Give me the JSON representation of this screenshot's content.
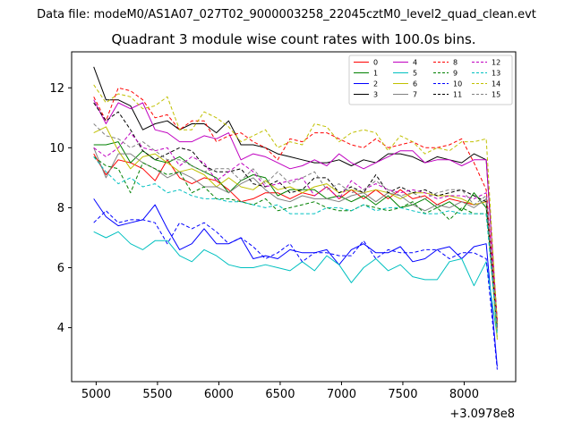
{
  "suptitle": "Data file: modeM0/AS1A07_027T02_9000003258_22045cztM0_level2_quad_clean.evt",
  "chart_data": {
    "type": "line",
    "title": "Quadrant 3 module wise count rates with 100.0s bins.",
    "xlabel": "",
    "ylabel": "",
    "x_offset_label": "+3.0978e8",
    "xlim": [
      4800,
      8420
    ],
    "ylim": [
      2.2,
      13.2
    ],
    "xticks": [
      5000,
      5500,
      6000,
      6500,
      7000,
      7500,
      8000
    ],
    "yticks": [
      4,
      6,
      8,
      10,
      12
    ],
    "legend_position": "top-right",
    "x": [
      4980,
      5080,
      5180,
      5280,
      5380,
      5480,
      5580,
      5680,
      5780,
      5880,
      5980,
      6080,
      6180,
      6280,
      6380,
      6480,
      6580,
      6680,
      6780,
      6880,
      6980,
      7080,
      7180,
      7280,
      7380,
      7480,
      7580,
      7680,
      7780,
      7880,
      7980,
      8080,
      8180,
      8270
    ],
    "series": [
      {
        "name": "0",
        "color": "#ff0000",
        "dash": false,
        "values": [
          9.8,
          9.1,
          9.6,
          9.5,
          9.3,
          8.9,
          9.6,
          9.0,
          8.8,
          9.0,
          8.9,
          8.6,
          8.2,
          8.3,
          8.5,
          8.5,
          8.3,
          8.5,
          8.4,
          8.7,
          8.3,
          8.6,
          8.3,
          8.6,
          8.3,
          8.6,
          8.3,
          8.4,
          8.1,
          8.3,
          8.2,
          8.1,
          8.2,
          4.0
        ]
      },
      {
        "name": "1",
        "color": "#008000",
        "dash": false,
        "values": [
          10.1,
          10.1,
          10.2,
          9.5,
          9.9,
          9.6,
          9.5,
          9.7,
          9.4,
          9.2,
          9.0,
          8.5,
          8.9,
          9.1,
          9.0,
          8.4,
          8.6,
          8.6,
          8.6,
          8.3,
          8.4,
          8.2,
          8.4,
          8.1,
          8.4,
          8.0,
          8.1,
          8.3,
          8.0,
          8.2,
          7.9,
          8.5,
          8.0,
          4.1
        ]
      },
      {
        "name": "2",
        "color": "#0000ff",
        "dash": false,
        "values": [
          8.3,
          7.7,
          7.4,
          7.5,
          7.6,
          8.1,
          7.3,
          6.6,
          6.8,
          7.3,
          6.8,
          6.8,
          7.0,
          6.3,
          6.4,
          6.3,
          6.6,
          6.5,
          6.5,
          6.6,
          6.1,
          6.6,
          6.8,
          6.5,
          6.5,
          6.7,
          6.2,
          6.3,
          6.6,
          6.7,
          6.3,
          6.7,
          6.8,
          2.7
        ]
      },
      {
        "name": "3",
        "color": "#000000",
        "dash": false,
        "values": [
          12.7,
          11.6,
          11.6,
          11.4,
          10.6,
          10.8,
          10.9,
          10.6,
          10.8,
          10.8,
          10.5,
          10.9,
          10.1,
          10.1,
          10.0,
          9.8,
          9.7,
          9.6,
          9.5,
          9.5,
          9.6,
          9.4,
          9.6,
          9.5,
          9.8,
          9.8,
          9.7,
          9.5,
          9.7,
          9.6,
          9.5,
          9.8,
          9.6,
          4.2
        ]
      },
      {
        "name": "4",
        "color": "#c000c0",
        "dash": false,
        "values": [
          11.6,
          10.8,
          11.5,
          11.3,
          11.5,
          10.6,
          10.5,
          10.2,
          10.2,
          10.4,
          10.3,
          10.5,
          9.6,
          9.8,
          9.7,
          9.5,
          9.3,
          9.4,
          9.6,
          9.4,
          9.8,
          9.5,
          9.3,
          9.5,
          9.7,
          9.9,
          9.9,
          9.5,
          9.6,
          9.6,
          9.4,
          9.6,
          9.6,
          4.2
        ]
      },
      {
        "name": "5",
        "color": "#00c0c0",
        "dash": false,
        "values": [
          7.2,
          7.0,
          7.2,
          6.8,
          6.6,
          6.9,
          6.9,
          6.4,
          6.2,
          6.6,
          6.4,
          6.1,
          6.0,
          6.0,
          6.1,
          6.0,
          5.9,
          6.2,
          5.9,
          6.4,
          6.1,
          5.5,
          6.0,
          6.3,
          5.9,
          6.1,
          5.7,
          5.6,
          5.6,
          6.2,
          6.3,
          5.4,
          6.2,
          3.7
        ]
      },
      {
        "name": "6",
        "color": "#c0c000",
        "dash": false,
        "values": [
          10.5,
          10.7,
          9.9,
          9.3,
          9.7,
          9.8,
          9.5,
          9.2,
          9.3,
          9.1,
          8.7,
          9.0,
          8.7,
          8.6,
          8.9,
          8.6,
          8.7,
          8.5,
          8.7,
          8.8,
          8.5,
          8.6,
          8.5,
          8.6,
          8.5,
          8.3,
          8.5,
          8.5,
          8.4,
          8.4,
          8.3,
          8.1,
          8.2,
          3.6
        ]
      },
      {
        "name": "7",
        "color": "#808080",
        "dash": false,
        "values": [
          10.0,
          9.0,
          9.8,
          9.8,
          9.5,
          9.3,
          9.0,
          9.2,
          9.0,
          8.7,
          8.7,
          8.5,
          8.8,
          9.0,
          8.6,
          8.3,
          8.2,
          8.4,
          8.3,
          8.3,
          8.2,
          8.4,
          8.5,
          8.2,
          8.5,
          8.4,
          8.1,
          7.9,
          8.1,
          8.0,
          8.2,
          8.0,
          8.3,
          3.9
        ]
      },
      {
        "name": "8",
        "color": "#ff0000",
        "dash": true,
        "values": [
          11.7,
          10.9,
          12.0,
          11.9,
          11.6,
          11.0,
          11.1,
          10.6,
          10.9,
          10.9,
          10.2,
          10.4,
          10.5,
          10.2,
          10.0,
          9.6,
          10.3,
          10.2,
          10.5,
          10.5,
          10.3,
          10.1,
          10.0,
          10.3,
          10.0,
          10.1,
          10.2,
          10.0,
          10.0,
          10.1,
          10.3,
          9.5,
          8.6,
          4.2
        ]
      },
      {
        "name": "9",
        "color": "#008000",
        "dash": true,
        "values": [
          9.7,
          9.4,
          9.3,
          8.5,
          9.5,
          9.3,
          9.1,
          9.2,
          8.5,
          8.7,
          8.3,
          8.3,
          8.2,
          8.1,
          8.3,
          7.9,
          8.0,
          8.1,
          8.2,
          8.0,
          7.9,
          7.9,
          8.1,
          8.0,
          7.9,
          8.0,
          8.2,
          7.8,
          8.0,
          7.6,
          8.0,
          7.8,
          7.8,
          4.0
        ]
      },
      {
        "name": "10",
        "color": "#0000ff",
        "dash": true,
        "values": [
          7.5,
          7.9,
          7.5,
          7.6,
          7.6,
          7.5,
          6.8,
          7.5,
          7.3,
          7.5,
          7.2,
          6.8,
          7.0,
          6.7,
          6.3,
          6.5,
          6.8,
          6.2,
          6.5,
          6.5,
          6.4,
          6.4,
          6.9,
          6.3,
          6.6,
          6.5,
          6.5,
          6.6,
          6.6,
          6.3,
          6.5,
          6.5,
          6.3,
          2.6
        ]
      },
      {
        "name": "11",
        "color": "#000000",
        "dash": true,
        "values": [
          11.5,
          10.9,
          11.2,
          10.6,
          9.9,
          9.6,
          9.8,
          10.0,
          9.9,
          9.4,
          9.2,
          9.2,
          9.3,
          8.8,
          8.7,
          8.9,
          8.5,
          8.6,
          9.0,
          9.0,
          8.5,
          8.7,
          8.5,
          9.1,
          8.5,
          8.7,
          8.5,
          8.6,
          8.4,
          8.5,
          8.6,
          8.4,
          8.2,
          4.0
        ]
      },
      {
        "name": "12",
        "color": "#c000c0",
        "dash": true,
        "values": [
          10.0,
          9.7,
          10.0,
          10.5,
          10.0,
          9.9,
          10.0,
          9.4,
          9.7,
          9.5,
          8.9,
          9.2,
          9.5,
          9.2,
          8.7,
          8.8,
          8.9,
          9.0,
          8.4,
          8.7,
          8.3,
          8.9,
          8.6,
          8.8,
          8.6,
          8.5,
          8.6,
          8.5,
          8.3,
          8.4,
          8.4,
          8.3,
          8.5,
          4.0
        ]
      },
      {
        "name": "13",
        "color": "#00c0c0",
        "dash": true,
        "values": [
          9.7,
          9.2,
          8.8,
          9.0,
          8.7,
          8.8,
          8.5,
          8.6,
          8.4,
          8.3,
          8.3,
          8.2,
          8.2,
          8.1,
          8.0,
          8.1,
          7.8,
          7.8,
          7.8,
          8.0,
          8.0,
          7.9,
          8.1,
          7.9,
          8.0,
          8.0,
          7.9,
          7.8,
          7.8,
          7.9,
          7.8,
          7.8,
          7.8,
          3.8
        ]
      },
      {
        "name": "14",
        "color": "#c0c000",
        "dash": true,
        "values": [
          12.1,
          11.5,
          11.8,
          11.7,
          11.3,
          11.4,
          11.7,
          10.6,
          10.6,
          11.2,
          11.0,
          10.7,
          10.2,
          10.4,
          10.6,
          10.0,
          10.2,
          10.1,
          10.8,
          10.7,
          10.2,
          10.5,
          10.6,
          10.5,
          9.9,
          10.4,
          10.2,
          9.8,
          10.0,
          9.9,
          10.2,
          10.2,
          10.3,
          4.1
        ]
      },
      {
        "name": "15",
        "color": "#808080",
        "dash": true,
        "values": [
          10.8,
          10.4,
          10.3,
          10.0,
          10.2,
          9.9,
          9.6,
          9.6,
          9.4,
          9.2,
          9.3,
          9.3,
          8.9,
          9.3,
          8.8,
          9.2,
          8.8,
          9.0,
          9.2,
          8.6,
          8.8,
          8.5,
          8.6,
          8.9,
          8.6,
          8.4,
          8.5,
          8.3,
          8.5,
          8.6,
          8.6,
          8.1,
          8.4,
          4.0
        ]
      }
    ]
  }
}
